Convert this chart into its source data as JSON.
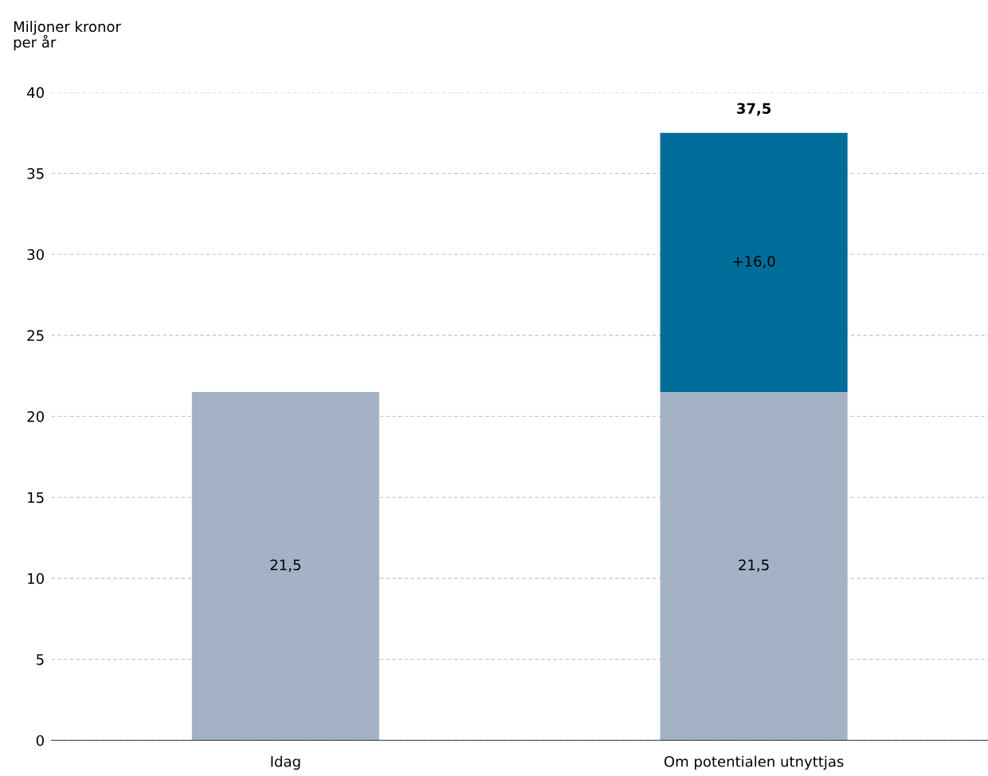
{
  "chart_data": {
    "type": "bar",
    "stacked": true,
    "ylabel": "Miljoner kronor\nper år",
    "categories": [
      "Idag",
      "Om potentialen utnyttjas"
    ],
    "series": [
      {
        "color": "#a3b2c4",
        "values": [
          21.5,
          21.5
        ],
        "value_labels": [
          "21,5",
          "21,5"
        ]
      },
      {
        "color": "#006c99",
        "values": [
          null,
          16.0
        ],
        "value_labels": [
          null,
          "+16,0"
        ]
      }
    ],
    "totals": [
      null,
      "37,5"
    ],
    "ylim": [
      0,
      40
    ],
    "yticks": [
      0,
      5,
      10,
      15,
      20,
      25,
      30,
      35,
      40
    ],
    "grid": "y",
    "legend": false
  }
}
